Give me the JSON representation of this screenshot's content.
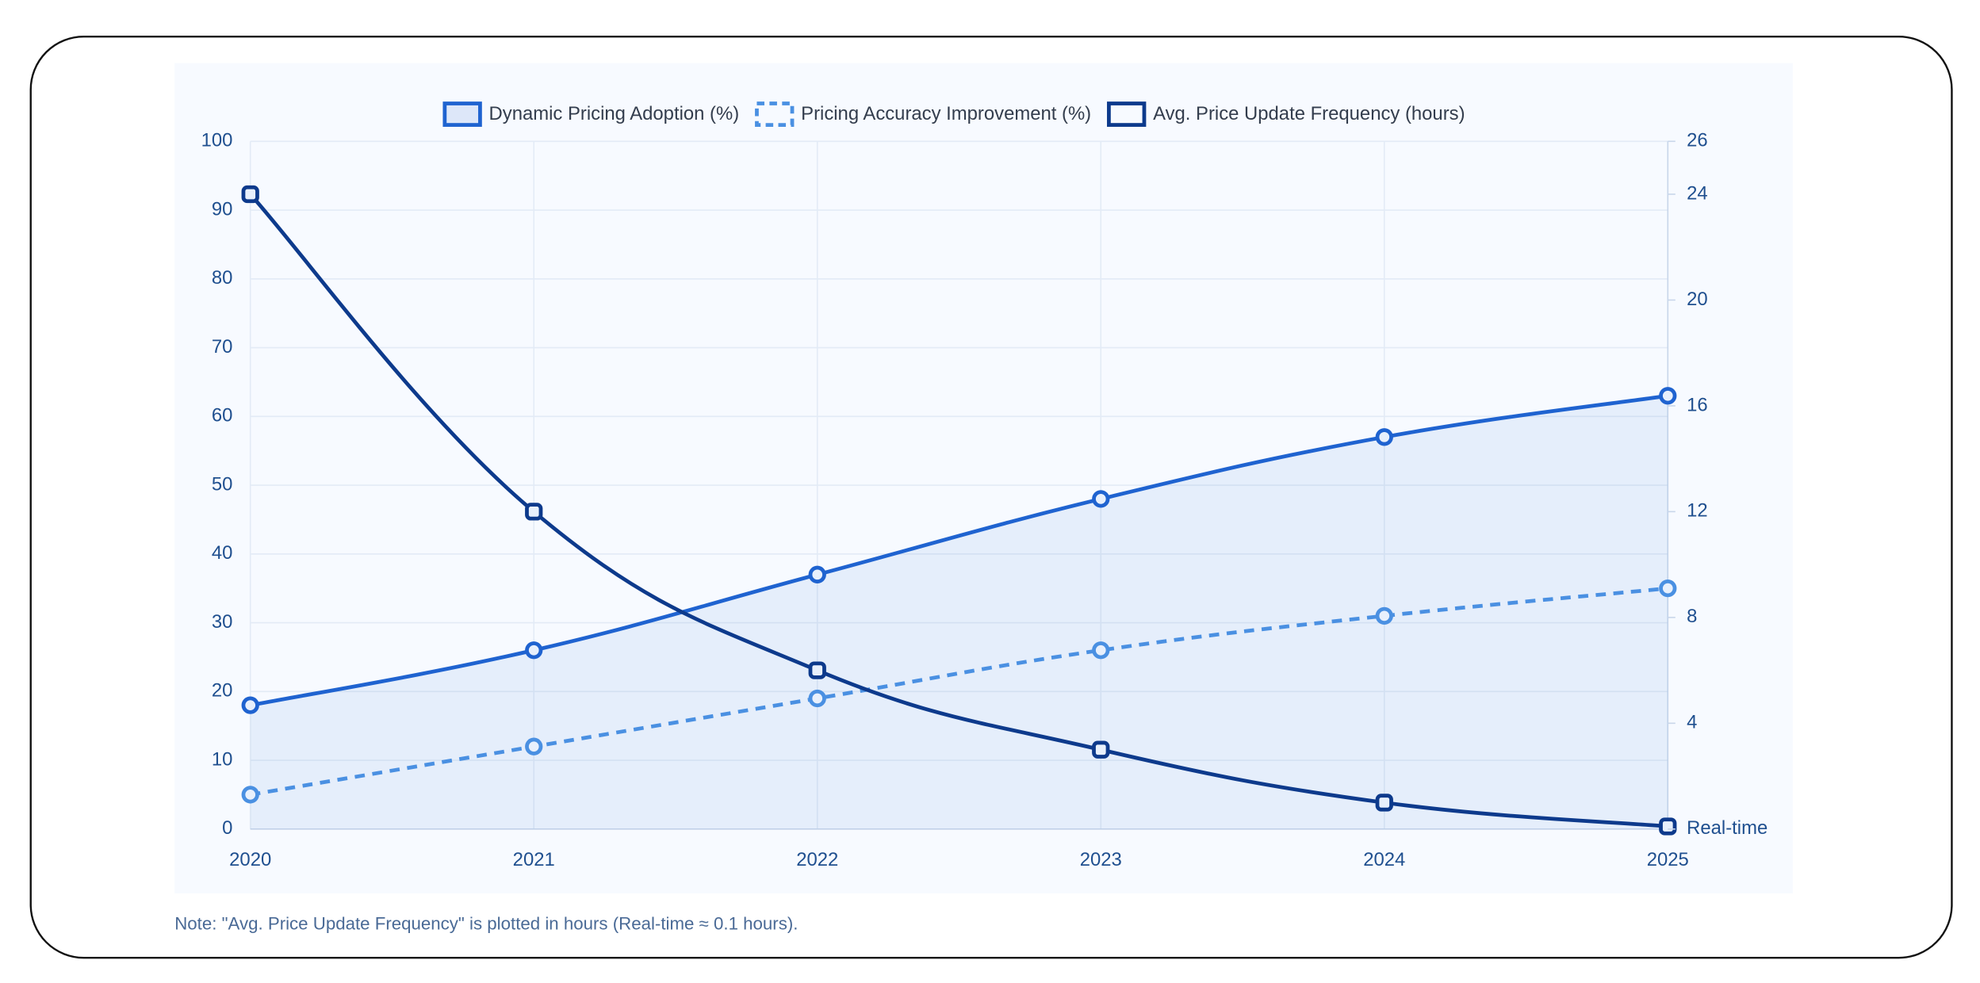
{
  "chart_data": {
    "type": "line",
    "categories": [
      "2020",
      "2021",
      "2022",
      "2023",
      "2024",
      "2025"
    ],
    "series": [
      {
        "name": "Dynamic Pricing Adoption (%)",
        "color": "#1f63d0",
        "values": [
          18,
          26,
          37,
          48,
          57,
          63
        ],
        "fill": true,
        "dashed": false,
        "marker": "circle"
      },
      {
        "name": "Pricing Accuracy Improvement (%)",
        "color": "#4a90e2",
        "values": [
          5,
          12,
          19,
          26,
          31,
          35
        ],
        "fill": false,
        "dashed": true,
        "marker": "circle"
      },
      {
        "name": "Avg. Price Update Frequency (hours)",
        "color": "#0d3a8c",
        "values": [
          24,
          12,
          6,
          3,
          1,
          0.1
        ],
        "axis": "y2",
        "fill": false,
        "dashed": false,
        "marker": "square"
      }
    ],
    "ylim": [
      0,
      100
    ],
    "yticks": [
      0,
      10,
      20,
      30,
      40,
      50,
      60,
      70,
      80,
      90,
      100
    ],
    "y2lim": [
      0,
      26
    ],
    "y2ticks": [
      {
        "value": 0,
        "label": "Real-time"
      },
      4,
      8,
      12,
      16,
      20,
      24,
      26
    ],
    "grid": true,
    "legend": "top",
    "note": "Note: \"Avg. Price Update Frequency\" is plotted in hours (Real-time ≈ 0.1 hours)."
  }
}
